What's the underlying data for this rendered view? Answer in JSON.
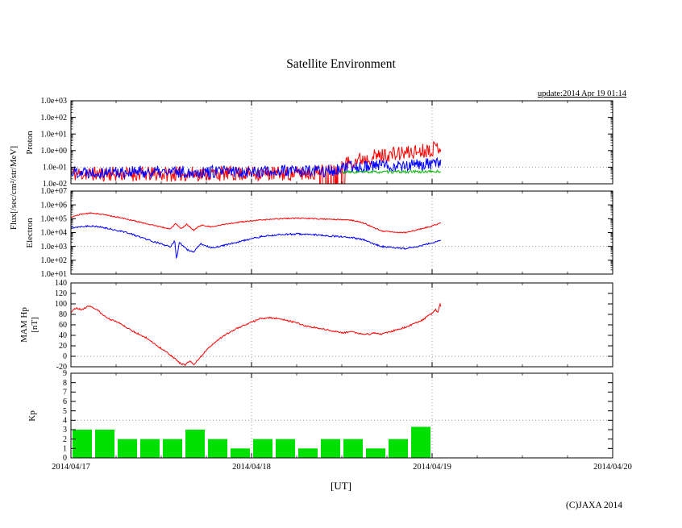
{
  "header": {
    "title": "Satellite Environment",
    "update_label": "update:2014 Apr 19 01:14"
  },
  "axis_labels": {
    "flux": "Flux[/sec/cm²/str/MeV]",
    "proton": "Proton",
    "electron": "Electron",
    "hp_line1": "MAM Hp",
    "hp_line2": "[nT]",
    "kp": "Kp",
    "x_unit": "[UT]"
  },
  "footer": {
    "copyright": "(C)JAXA 2014"
  },
  "colors": {
    "red": "#ff0000",
    "blue": "#0000ff",
    "green": "#00b400",
    "bar": "#00e000",
    "grid": "#999999",
    "axis": "#000000"
  },
  "x_axis": {
    "unit": "[UT]",
    "gridline_days": [
      1,
      2
    ],
    "ticks": [
      {
        "day": 0,
        "label": "2014/04/17"
      },
      {
        "day": 1,
        "label": "2014/04/18"
      },
      {
        "day": 2,
        "label": "2014/04/19"
      },
      {
        "day": 3,
        "label": "2014/04/20"
      }
    ]
  },
  "chart_data": [
    {
      "id": "proton",
      "type": "line",
      "ylabel": "Proton",
      "yscale": "log",
      "ylim": [
        0.01,
        1000
      ],
      "threshold_y": 0.1,
      "data_end_day": 2.05,
      "yticks": [
        {
          "v": 1000,
          "label": "1.0e+03"
        },
        {
          "v": 100,
          "label": "1.0e+02"
        },
        {
          "v": 10,
          "label": "1.0e+01"
        },
        {
          "v": 1,
          "label": "1.0e+00"
        },
        {
          "v": 0.1,
          "label": "1.0e-01"
        },
        {
          "v": 0.01,
          "label": "1.0e-02"
        }
      ],
      "series": [
        {
          "name": "red",
          "color_key": "red",
          "seed": 11,
          "noise_decades": 0.45,
          "dropout": {
            "start": 1.38,
            "end": 1.52,
            "prob": 0.45,
            "factor": 0.02
          },
          "anchors": [
            [
              0,
              0.04
            ],
            [
              0.5,
              0.038
            ],
            [
              1.0,
              0.042
            ],
            [
              1.3,
              0.04
            ],
            [
              1.45,
              0.07
            ],
            [
              1.55,
              0.22
            ],
            [
              1.65,
              0.4
            ],
            [
              1.75,
              0.55
            ],
            [
              1.85,
              0.7
            ],
            [
              1.95,
              1.0
            ],
            [
              2.0,
              1.3
            ],
            [
              2.05,
              1.9
            ]
          ]
        },
        {
          "name": "blue",
          "color_key": "blue",
          "seed": 22,
          "noise_decades": 0.38,
          "anchors": [
            [
              0,
              0.055
            ],
            [
              0.5,
              0.05
            ],
            [
              1.0,
              0.055
            ],
            [
              1.45,
              0.06
            ],
            [
              1.55,
              0.1
            ],
            [
              1.7,
              0.13
            ],
            [
              1.9,
              0.13
            ],
            [
              2.05,
              0.16
            ]
          ]
        },
        {
          "name": "green",
          "color_key": "green",
          "seed": 33,
          "noise_decades": 0.08,
          "start_day": 1.5,
          "anchors": [
            [
              1.5,
              0.05
            ],
            [
              1.8,
              0.052
            ],
            [
              2.05,
              0.055
            ]
          ]
        }
      ]
    },
    {
      "id": "electron",
      "type": "line",
      "ylabel": "Electron",
      "yscale": "log",
      "ylim": [
        10,
        10000000
      ],
      "threshold_y": 1000,
      "data_end_day": 2.05,
      "yticks": [
        {
          "v": 10000000,
          "label": "1.0e+07"
        },
        {
          "v": 1000000,
          "label": "1.0e+06"
        },
        {
          "v": 100000,
          "label": "1.0e+05"
        },
        {
          "v": 10000,
          "label": "1.0e+04"
        },
        {
          "v": 1000,
          "label": "1.0e+03"
        },
        {
          "v": 100,
          "label": "1.0e+02"
        },
        {
          "v": 10,
          "label": "1.0e+01"
        }
      ],
      "series": [
        {
          "name": "red",
          "color_key": "red",
          "seed": 44,
          "noise_decades": 0.04,
          "anchors": [
            [
              0,
              130000
            ],
            [
              0.06,
              220000
            ],
            [
              0.12,
              260000
            ],
            [
              0.2,
              180000
            ],
            [
              0.3,
              100000
            ],
            [
              0.4,
              50000
            ],
            [
              0.5,
              25000
            ],
            [
              0.55,
              18000
            ],
            [
              0.58,
              45000
            ],
            [
              0.61,
              18000
            ],
            [
              0.64,
              40000
            ],
            [
              0.68,
              15000
            ],
            [
              0.72,
              35000
            ],
            [
              0.78,
              25000
            ],
            [
              0.85,
              40000
            ],
            [
              0.95,
              60000
            ],
            [
              1.05,
              80000
            ],
            [
              1.15,
              100000
            ],
            [
              1.25,
              110000
            ],
            [
              1.35,
              100000
            ],
            [
              1.45,
              90000
            ],
            [
              1.55,
              80000
            ],
            [
              1.62,
              50000
            ],
            [
              1.68,
              22000
            ],
            [
              1.72,
              13000
            ],
            [
              1.78,
              11000
            ],
            [
              1.85,
              10000
            ],
            [
              1.92,
              16000
            ],
            [
              2.0,
              30000
            ],
            [
              2.05,
              50000
            ]
          ]
        },
        {
          "name": "blue",
          "color_key": "blue",
          "seed": 55,
          "noise_decades": 0.06,
          "anchors": [
            [
              0,
              22000
            ],
            [
              0.06,
              28000
            ],
            [
              0.12,
              30000
            ],
            [
              0.2,
              20000
            ],
            [
              0.3,
              11000
            ],
            [
              0.4,
              4000
            ],
            [
              0.5,
              1500
            ],
            [
              0.55,
              900
            ],
            [
              0.575,
              2500
            ],
            [
              0.585,
              120
            ],
            [
              0.6,
              2000
            ],
            [
              0.64,
              600
            ],
            [
              0.68,
              400
            ],
            [
              0.72,
              1500
            ],
            [
              0.78,
              800
            ],
            [
              0.85,
              1200
            ],
            [
              0.95,
              2500
            ],
            [
              1.05,
              5000
            ],
            [
              1.15,
              7000
            ],
            [
              1.25,
              8000
            ],
            [
              1.35,
              7000
            ],
            [
              1.45,
              5500
            ],
            [
              1.55,
              4500
            ],
            [
              1.62,
              3000
            ],
            [
              1.68,
              1500
            ],
            [
              1.72,
              1000
            ],
            [
              1.78,
              800
            ],
            [
              1.85,
              700
            ],
            [
              1.92,
              1000
            ],
            [
              2.0,
              1800
            ],
            [
              2.05,
              2800
            ]
          ]
        }
      ]
    },
    {
      "id": "hp",
      "type": "line",
      "ylabel": "MAM Hp [nT]",
      "yscale": "linear",
      "ylim": [
        -20,
        140
      ],
      "threshold_y": 0,
      "data_end_day": 2.05,
      "yticks": [
        {
          "v": 140,
          "label": "140"
        },
        {
          "v": 120,
          "label": "120"
        },
        {
          "v": 100,
          "label": "100"
        },
        {
          "v": 80,
          "label": "80"
        },
        {
          "v": 60,
          "label": "60"
        },
        {
          "v": 40,
          "label": "40"
        },
        {
          "v": 20,
          "label": "20"
        },
        {
          "v": 0,
          "label": "0"
        },
        {
          "v": -20,
          "label": "-20"
        }
      ],
      "series": [
        {
          "name": "red",
          "color_key": "red",
          "seed": 66,
          "noise_abs": 1.5,
          "anchors": [
            [
              0,
              85
            ],
            [
              0.03,
              93
            ],
            [
              0.06,
              88
            ],
            [
              0.1,
              97
            ],
            [
              0.14,
              90
            ],
            [
              0.18,
              78
            ],
            [
              0.22,
              70
            ],
            [
              0.28,
              62
            ],
            [
              0.33,
              50
            ],
            [
              0.38,
              42
            ],
            [
              0.42,
              35
            ],
            [
              0.47,
              22
            ],
            [
              0.52,
              10
            ],
            [
              0.56,
              0
            ],
            [
              0.6,
              -12
            ],
            [
              0.63,
              -17
            ],
            [
              0.66,
              -8
            ],
            [
              0.68,
              -16
            ],
            [
              0.71,
              -5
            ],
            [
              0.75,
              12
            ],
            [
              0.8,
              28
            ],
            [
              0.85,
              40
            ],
            [
              0.9,
              50
            ],
            [
              0.95,
              58
            ],
            [
              1.0,
              65
            ],
            [
              1.05,
              72
            ],
            [
              1.1,
              74
            ],
            [
              1.15,
              72
            ],
            [
              1.2,
              68
            ],
            [
              1.25,
              64
            ],
            [
              1.3,
              58
            ],
            [
              1.35,
              55
            ],
            [
              1.4,
              52
            ],
            [
              1.45,
              48
            ],
            [
              1.5,
              45
            ],
            [
              1.55,
              47
            ],
            [
              1.6,
              44
            ],
            [
              1.65,
              42
            ],
            [
              1.68,
              45
            ],
            [
              1.72,
              42
            ],
            [
              1.78,
              48
            ],
            [
              1.85,
              55
            ],
            [
              1.9,
              62
            ],
            [
              1.95,
              70
            ],
            [
              2.0,
              82
            ],
            [
              2.02,
              90
            ],
            [
              2.03,
              82
            ],
            [
              2.045,
              100
            ],
            [
              2.05,
              92
            ]
          ]
        }
      ]
    },
    {
      "id": "kp",
      "type": "bar",
      "ylabel": "Kp",
      "yscale": "linear",
      "ylim": [
        0,
        9
      ],
      "threshold_y": 4,
      "bar_width_days": 0.125,
      "data_end_day": 2.0,
      "yticks": [
        {
          "v": 9,
          "label": "9"
        },
        {
          "v": 8,
          "label": "8"
        },
        {
          "v": 7,
          "label": "7"
        },
        {
          "v": 6,
          "label": "6"
        },
        {
          "v": 5,
          "label": "5"
        },
        {
          "v": 4,
          "label": "4"
        },
        {
          "v": 3,
          "label": "3"
        },
        {
          "v": 2,
          "label": "2"
        },
        {
          "v": 1,
          "label": "1"
        },
        {
          "v": 0,
          "label": "0"
        }
      ],
      "values": [
        3,
        3,
        2,
        2,
        2,
        3,
        2,
        1,
        2,
        2,
        1,
        2,
        2,
        1,
        2,
        3.3
      ]
    }
  ]
}
